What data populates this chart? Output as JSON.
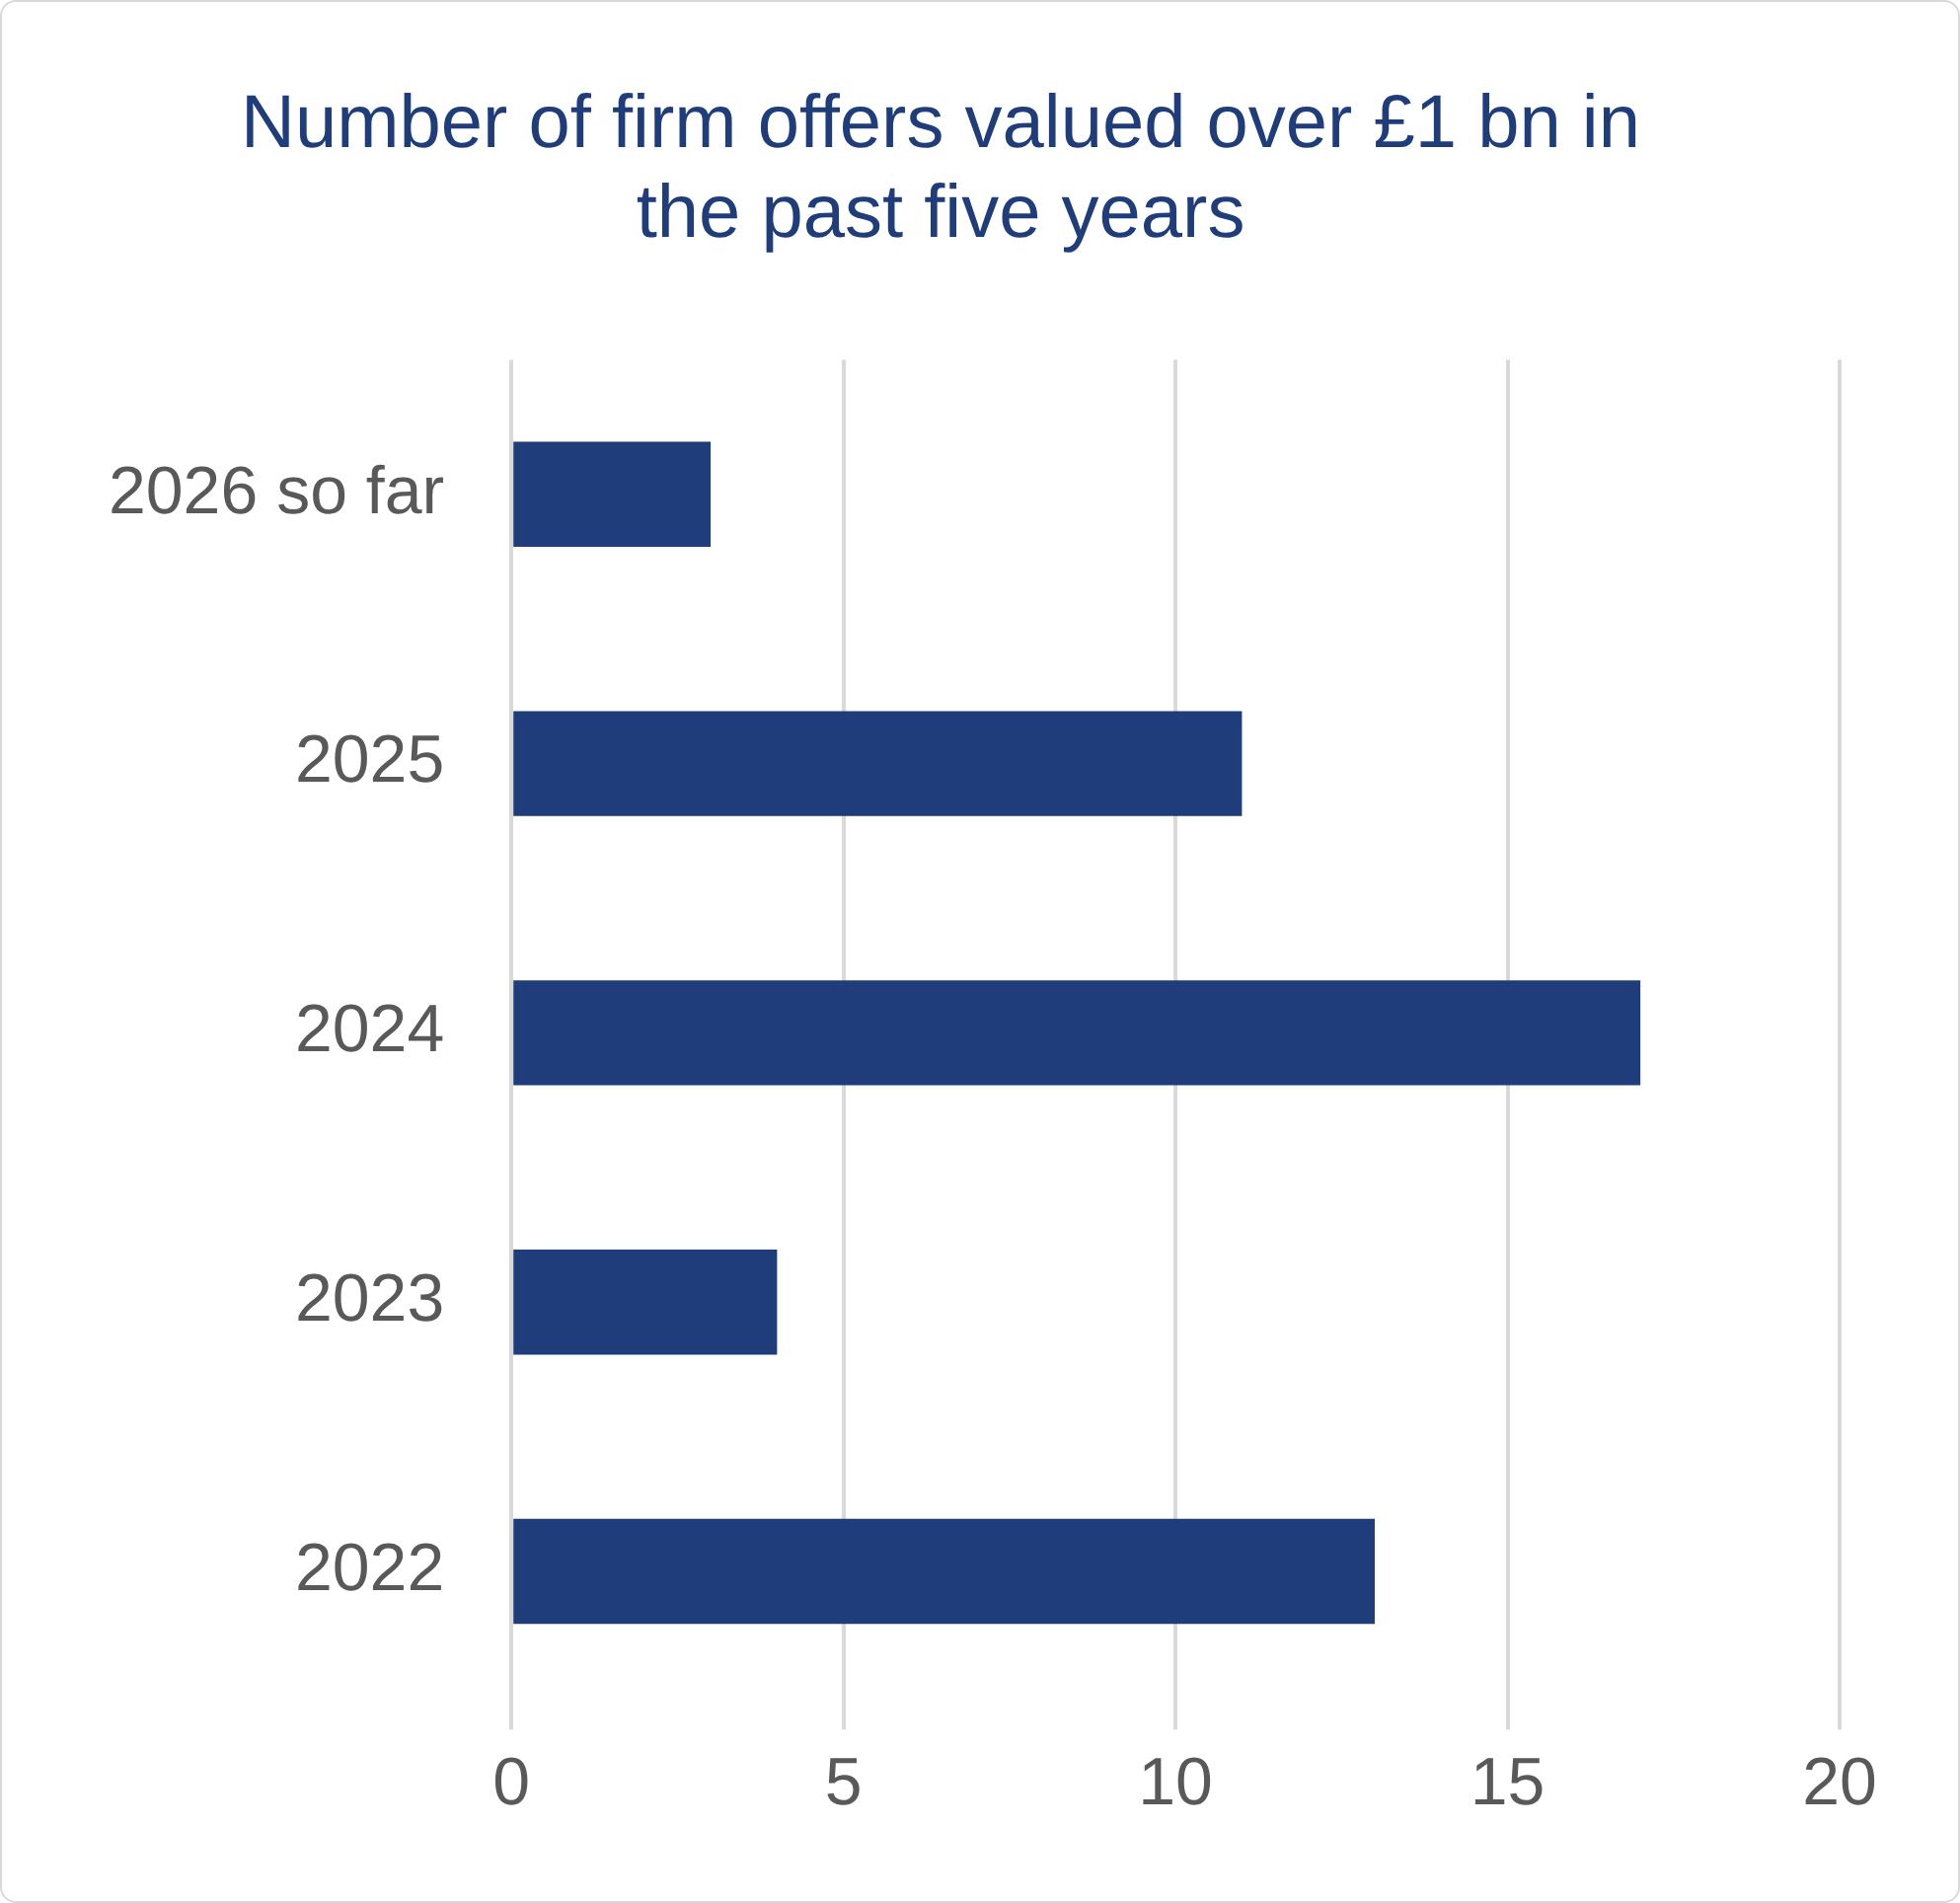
{
  "chart_data": {
    "type": "bar",
    "orientation": "horizontal",
    "title": "Number of firm offers valued over £1 bn in the past five years",
    "categories": [
      "2026 so far",
      "2025",
      "2024",
      "2023",
      "2022"
    ],
    "values": [
      3,
      11,
      17,
      4,
      13
    ],
    "color": "#1f3d7a",
    "xlim": [
      0,
      20
    ],
    "xticks": [
      0,
      5,
      10,
      15,
      20
    ],
    "grid": "x",
    "legend": false
  }
}
